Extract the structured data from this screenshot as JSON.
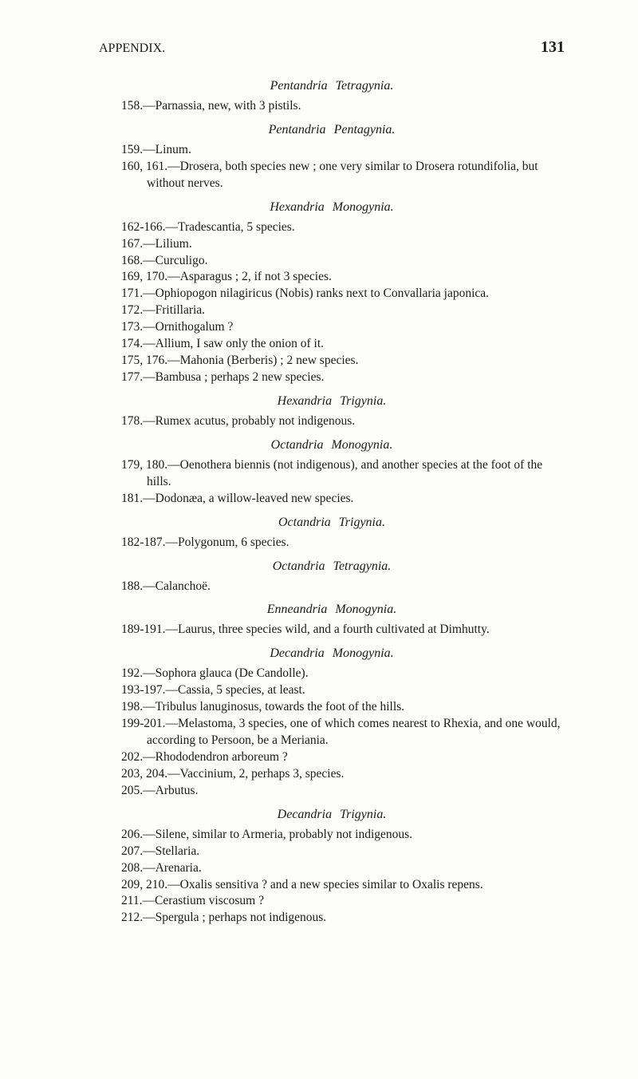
{
  "header": {
    "title": "APPENDIX.",
    "page_number": "131"
  },
  "sections": [
    {
      "heading_parts": [
        "Pentandria",
        "Tetragynia."
      ],
      "entries": [
        "158.—Parnassia, new, with 3 pistils."
      ]
    },
    {
      "heading_parts": [
        "Pentandria",
        "Pentagynia."
      ],
      "entries": [
        "159.—Linum.",
        "160, 161.—Drosera, both species new ; one very similar to Drosera rotundifolia, but without nerves."
      ]
    },
    {
      "heading_parts": [
        "Hexandria",
        "Monogynia."
      ],
      "entries": [
        "162-166.—Tradescantia, 5 species.",
        "167.—Lilium.",
        "168.—Curculigo.",
        "169, 170.—Asparagus ; 2, if not 3 species.",
        "171.—Ophiopogon nilagiricus (Nobis) ranks next to Convallaria japonica.",
        "172.—Fritillaria.",
        "173.—Ornithogalum ?",
        "174.—Allium, I saw only the onion of it.",
        "175, 176.—Mahonia (Berberis) ; 2 new species.",
        "177.—Bambusa ; perhaps 2 new species."
      ]
    },
    {
      "heading_parts": [
        "Hexandria",
        "Trigynia."
      ],
      "entries": [
        "178.—Rumex acutus, probably not indigenous."
      ]
    },
    {
      "heading_parts": [
        "Octandria",
        "Monogynia."
      ],
      "entries": [
        "179, 180.—Oenothera biennis (not indigenous), and another species at the foot of the hills.",
        "181.—Dodonæa, a willow-leaved new species."
      ]
    },
    {
      "heading_parts": [
        "Octandria",
        "Trigynia."
      ],
      "entries": [
        "182-187.—Polygonum, 6 species."
      ]
    },
    {
      "heading_parts": [
        "Octandria",
        "Tetragynia."
      ],
      "entries": [
        "188.—Calanchoë."
      ]
    },
    {
      "heading_parts": [
        "Enneandria",
        "Monogynia."
      ],
      "entries": [
        "189-191.—Laurus, three species wild, and a fourth cultivated at Dimhutty."
      ]
    },
    {
      "heading_parts": [
        "Decandria",
        "Monogynia."
      ],
      "entries": [
        "192.—Sophora glauca (De Candolle).",
        "193-197.—Cassia, 5 species, at least.",
        "198.—Tribulus lanuginosus, towards the foot of the hills.",
        "199-201.—Melastoma, 3 species, one of which comes nearest to Rhexia, and one would, according to Persoon, be a Meriania.",
        "202.—Rhododendron arboreum ?",
        "203, 204.—Vaccinium, 2, perhaps 3, species.",
        "205.—Arbutus."
      ]
    },
    {
      "heading_parts": [
        "Decandria",
        "Trigynia."
      ],
      "entries": [
        "206.—Silene, similar to Armeria, probably not indigenous.",
        "207.—Stellaria.",
        "208.—Arenaria.",
        "209, 210.—Oxalis sensitiva ? and a new species similar to Oxalis repens.",
        "211.—Cerastium viscosum ?",
        "212.—Spergula ; perhaps not indigenous."
      ]
    }
  ]
}
